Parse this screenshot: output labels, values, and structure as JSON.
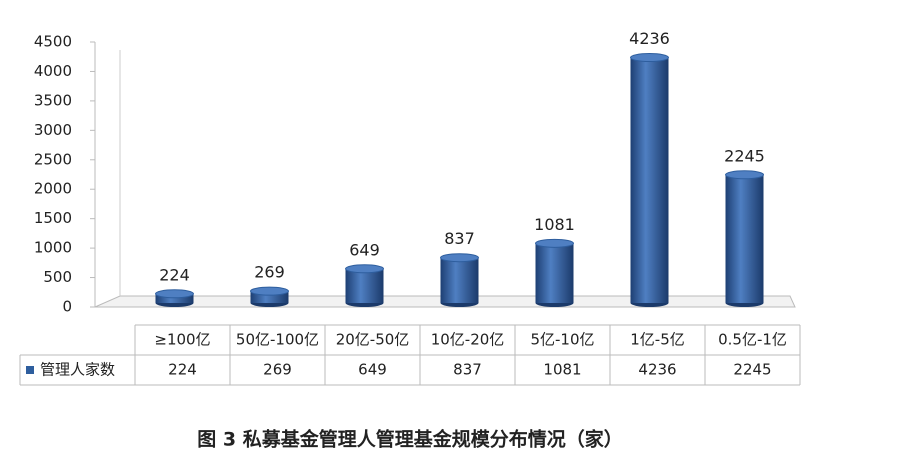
{
  "chart_data": {
    "type": "bar",
    "title": "图 3 私募基金管理人管理基金规模分布情况（家）",
    "categories": [
      "≥100亿",
      "50亿-100亿",
      "20亿-50亿",
      "10亿-20亿",
      "5亿-10亿",
      "1亿-5亿",
      "0.5亿-1亿"
    ],
    "series": [
      {
        "name": "管理人家数",
        "color": "#2e5e9e",
        "values": [
          224,
          269,
          649,
          837,
          1081,
          4236,
          2245
        ]
      }
    ],
    "ylim": [
      0,
      4500
    ],
    "yticks": [
      0,
      500,
      1000,
      1500,
      2000,
      2500,
      3000,
      3500,
      4000,
      4500
    ],
    "data_table": true
  }
}
